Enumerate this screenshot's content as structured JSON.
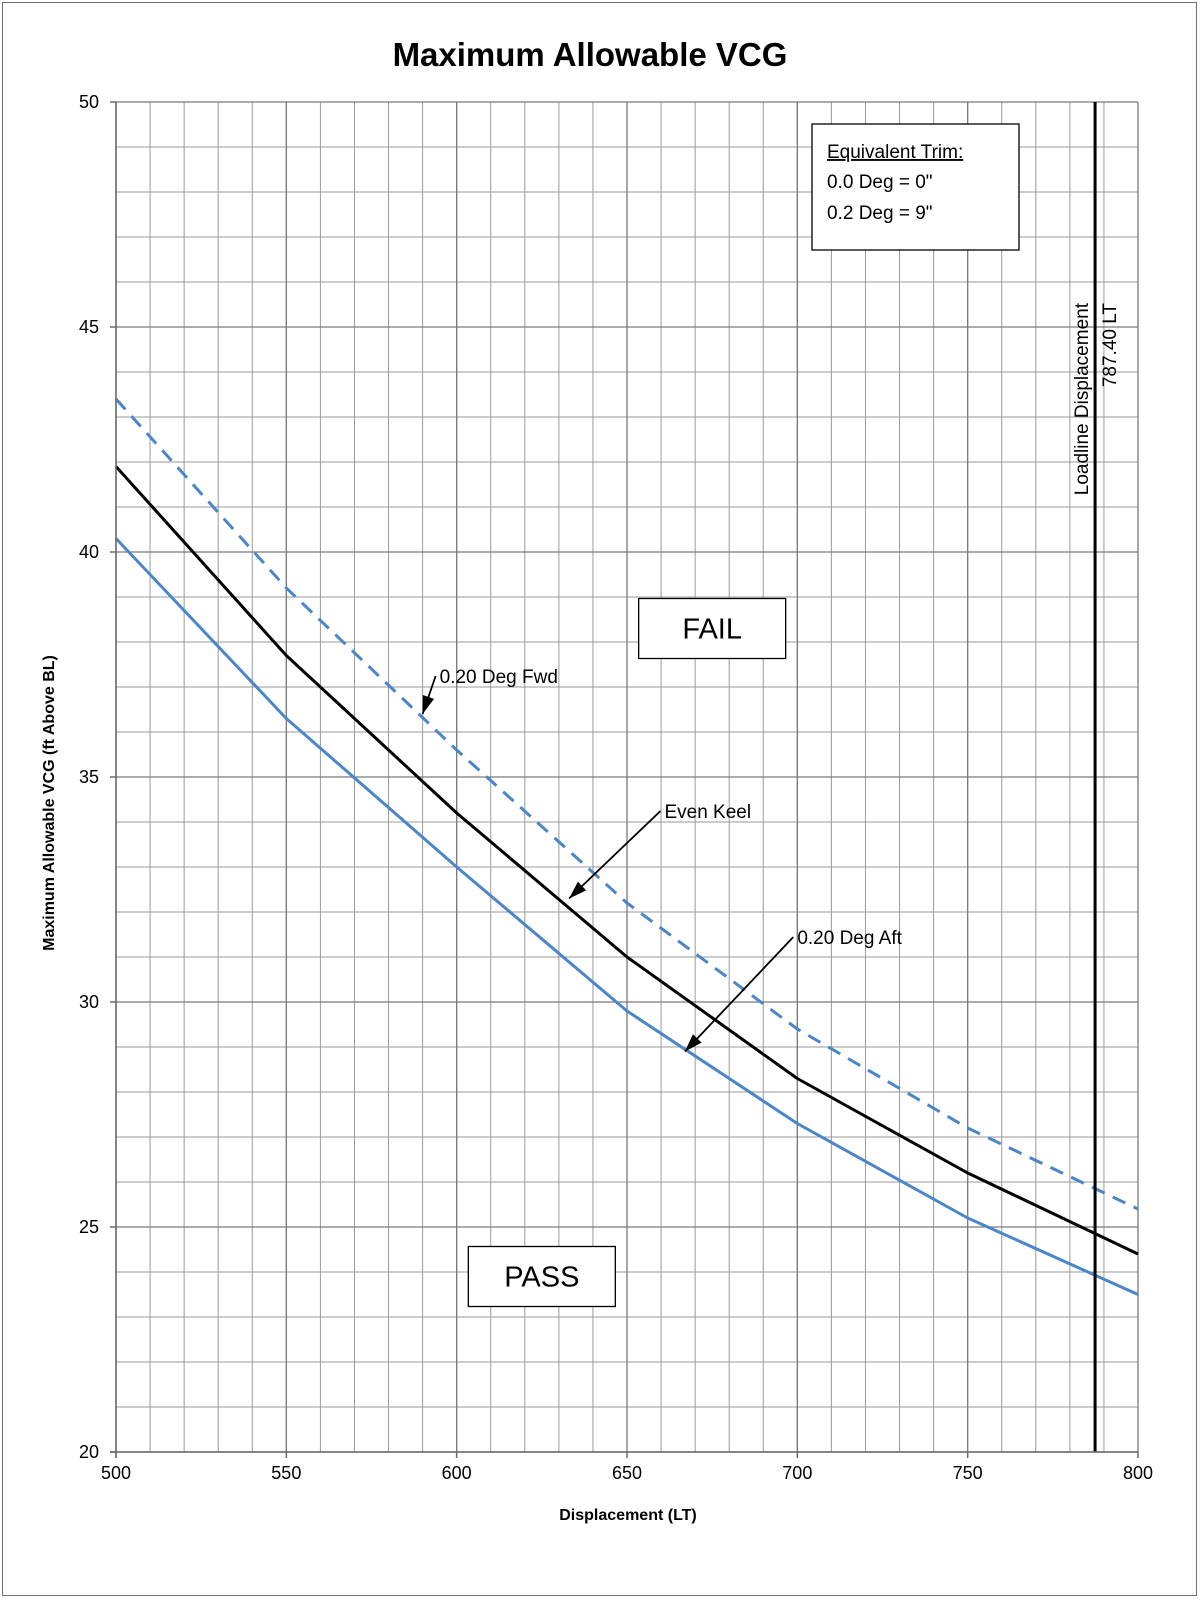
{
  "chart_data": {
    "type": "line",
    "title": "Maximum Allowable VCG",
    "xlabel": "Displacement  (LT)",
    "ylabel": "Maximum Allowable  VCG (ft Above BL)",
    "xlim": [
      500,
      800
    ],
    "ylim": [
      20,
      50
    ],
    "x_ticks": [
      500,
      550,
      600,
      650,
      700,
      750,
      800
    ],
    "y_ticks": [
      20,
      25,
      30,
      35,
      40,
      45,
      50
    ],
    "x_minor_step": 10,
    "y_minor_step": 1,
    "grid": true,
    "series": [
      {
        "name": "0.20 Deg Fwd",
        "color": "#4a86c8",
        "style": "dashed",
        "x": [
          500,
          550,
          600,
          650,
          700,
          750,
          800
        ],
        "y": [
          43.4,
          39.2,
          35.6,
          32.2,
          29.4,
          27.2,
          25.4
        ]
      },
      {
        "name": "Even Keel",
        "color": "#000000",
        "style": "solid",
        "x": [
          500,
          550,
          600,
          650,
          700,
          750,
          800
        ],
        "y": [
          41.9,
          37.7,
          34.2,
          31.0,
          28.3,
          26.2,
          24.4
        ]
      },
      {
        "name": "0.20 Deg Aft",
        "color": "#4a86c8",
        "style": "solid",
        "x": [
          500,
          550,
          600,
          650,
          700,
          750,
          800
        ],
        "y": [
          40.3,
          36.3,
          33.0,
          29.8,
          27.3,
          25.2,
          23.5
        ]
      }
    ],
    "vertical_line": {
      "x": 787.4,
      "label_line1": "Loadline Displacement",
      "label_line2": "787.40 LT",
      "color": "#000000"
    },
    "annotations": [
      {
        "text": "0.20 Deg Fwd",
        "arrow_to": [
          590,
          36.4
        ],
        "text_at": [
          595,
          37.2
        ]
      },
      {
        "text": "Even Keel",
        "arrow_to": [
          633,
          32.3
        ],
        "text_at": [
          661,
          34.2
        ]
      },
      {
        "text": "0.20 Deg Aft",
        "arrow_to": [
          667,
          28.9
        ],
        "text_at": [
          700,
          31.4
        ]
      }
    ],
    "region_labels": [
      {
        "text": "FAIL",
        "color": "#c00000",
        "at": [
          675,
          38.3
        ]
      },
      {
        "text": "PASS",
        "color": "#92d050",
        "at": [
          625,
          23.9
        ]
      }
    ],
    "legend_box": {
      "heading": "Equivalent Trim:",
      "lines": [
        "0.0 Deg = 0\"",
        "0.2 Deg = 9\""
      ],
      "placement": "top-right"
    }
  }
}
